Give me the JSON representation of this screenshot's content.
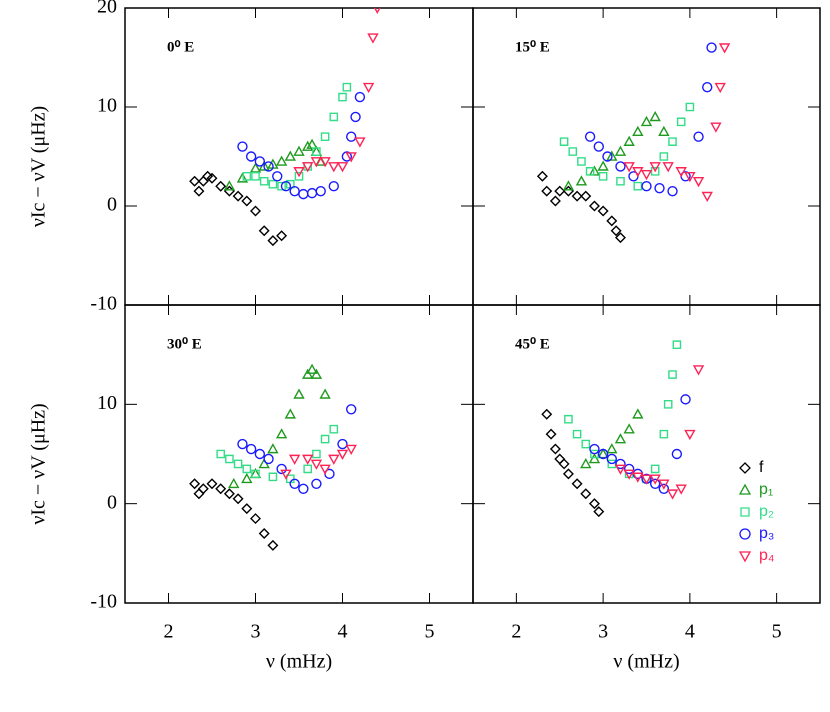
{
  "chart_data": [
    {
      "type": "scatter",
      "title": "0⁰ E",
      "ylabel": "νIc − νV (μHz)",
      "xlim": [
        1.5,
        5.5
      ],
      "ylim": [
        -10,
        20
      ],
      "yticks": [
        -10,
        0,
        10,
        20
      ],
      "series": [
        {
          "marker": "diamond",
          "color": "#000000",
          "x": [
            2.3,
            2.35,
            2.4,
            2.45,
            2.5,
            2.6,
            2.7,
            2.8,
            2.9,
            3.0,
            3.1,
            3.2,
            3.3
          ],
          "y": [
            2.5,
            1.5,
            2.5,
            3,
            2.8,
            2,
            1.5,
            1,
            0.5,
            -0.5,
            -2.5,
            -3.5,
            -3
          ]
        },
        {
          "marker": "triangle",
          "color": "#1f9a1f",
          "x": [
            2.7,
            2.85,
            3.0,
            3.1,
            3.2,
            3.3,
            3.4,
            3.5,
            3.6,
            3.65,
            3.7,
            3.75
          ],
          "y": [
            2,
            2.8,
            3.8,
            4,
            4.2,
            4.5,
            5,
            5.5,
            6,
            6.2,
            5.5,
            4.5
          ]
        },
        {
          "marker": "square",
          "color": "#33dd88",
          "x": [
            2.9,
            3.0,
            3.1,
            3.2,
            3.3,
            3.4,
            3.5,
            3.6,
            3.7,
            3.8,
            3.9,
            4.0,
            4.05
          ],
          "y": [
            3,
            3,
            2.5,
            2.2,
            2,
            2.2,
            3,
            4,
            5.5,
            7,
            9,
            11,
            12
          ]
        },
        {
          "marker": "circle",
          "color": "#1a1aff",
          "x": [
            2.85,
            2.95,
            3.05,
            3.15,
            3.25,
            3.35,
            3.45,
            3.55,
            3.65,
            3.75,
            3.9,
            4.05,
            4.1,
            4.15,
            4.2
          ],
          "y": [
            6,
            5,
            4.5,
            4,
            3,
            2,
            1.5,
            1.2,
            1.3,
            1.5,
            2,
            5,
            7,
            9,
            11
          ]
        },
        {
          "marker": "invtriangle",
          "color": "#ff2255",
          "x": [
            3.5,
            3.6,
            3.7,
            3.8,
            3.9,
            4.0,
            4.1,
            4.2,
            4.3,
            4.35,
            4.4
          ],
          "y": [
            3.5,
            4,
            4.5,
            4.5,
            4,
            4,
            5,
            6.5,
            12,
            17,
            20
          ]
        }
      ]
    },
    {
      "type": "scatter",
      "title": "15⁰ E",
      "xlim": [
        1.5,
        5.5
      ],
      "ylim": [
        -10,
        20
      ],
      "series": [
        {
          "marker": "diamond",
          "color": "#000000",
          "x": [
            2.3,
            2.35,
            2.45,
            2.5,
            2.6,
            2.7,
            2.8,
            2.9,
            3.0,
            3.1,
            3.15,
            3.2
          ],
          "y": [
            3,
            1.5,
            0.5,
            1.5,
            1.5,
            1,
            1,
            0,
            -0.5,
            -1.5,
            -2.5,
            -3.2
          ]
        },
        {
          "marker": "triangle",
          "color": "#1f9a1f",
          "x": [
            2.6,
            2.75,
            2.9,
            3.0,
            3.1,
            3.2,
            3.3,
            3.4,
            3.5,
            3.6,
            3.7
          ],
          "y": [
            2,
            2.5,
            3.5,
            4,
            5,
            5.5,
            6.5,
            7.5,
            8.5,
            9,
            7.5
          ]
        },
        {
          "marker": "square",
          "color": "#33dd88",
          "x": [
            2.55,
            2.65,
            2.75,
            2.85,
            3.0,
            3.2,
            3.4,
            3.6,
            3.7,
            3.8,
            3.9,
            4.0
          ],
          "y": [
            6.5,
            5.5,
            4.5,
            3.5,
            3,
            2.5,
            2,
            3.5,
            5,
            6.5,
            8.5,
            10
          ]
        },
        {
          "marker": "circle",
          "color": "#1a1aff",
          "x": [
            2.85,
            2.95,
            3.05,
            3.2,
            3.35,
            3.5,
            3.65,
            3.8,
            3.95,
            4.1,
            4.2,
            4.25
          ],
          "y": [
            7,
            6,
            5,
            4,
            3,
            2,
            1.8,
            1.5,
            3,
            7,
            12,
            16
          ]
        },
        {
          "marker": "invtriangle",
          "color": "#ff2255",
          "x": [
            3.3,
            3.4,
            3.5,
            3.6,
            3.75,
            3.9,
            4.0,
            4.1,
            4.2,
            4.3,
            4.35,
            4.4
          ],
          "y": [
            4,
            3.5,
            3.2,
            4,
            4,
            3.5,
            3,
            2.5,
            1,
            8,
            12,
            16
          ]
        }
      ]
    },
    {
      "type": "scatter",
      "title": "30⁰ E",
      "ylabel": "νIc − νV (μHz)",
      "xlabel": "ν (mHz)",
      "xlim": [
        1.5,
        5.5
      ],
      "ylim": [
        -10,
        20
      ],
      "xticks": [
        2,
        3,
        4,
        5
      ],
      "yticks": [
        -10,
        0,
        10
      ],
      "series": [
        {
          "marker": "diamond",
          "color": "#000000",
          "x": [
            2.3,
            2.35,
            2.4,
            2.5,
            2.6,
            2.7,
            2.8,
            2.9,
            3.0,
            3.1,
            3.2
          ],
          "y": [
            2,
            1,
            1.5,
            2,
            1.5,
            1,
            0.5,
            -0.5,
            -1.5,
            -3,
            -4.2
          ]
        },
        {
          "marker": "triangle",
          "color": "#1f9a1f",
          "x": [
            2.75,
            2.9,
            3.0,
            3.1,
            3.2,
            3.3,
            3.4,
            3.5,
            3.6,
            3.65,
            3.7,
            3.8
          ],
          "y": [
            2,
            2.5,
            3,
            4,
            5.5,
            7,
            9,
            11,
            13,
            13.5,
            13,
            11
          ]
        },
        {
          "marker": "square",
          "color": "#33dd88",
          "x": [
            2.6,
            2.7,
            2.8,
            2.9,
            3.0,
            3.2,
            3.4,
            3.6,
            3.7,
            3.8,
            3.9
          ],
          "y": [
            5,
            4.5,
            4,
            3.5,
            3,
            2.7,
            2.5,
            3.5,
            5,
            6.5,
            7.5
          ]
        },
        {
          "marker": "circle",
          "color": "#1a1aff",
          "x": [
            2.85,
            2.95,
            3.05,
            3.15,
            3.3,
            3.45,
            3.55,
            3.7,
            3.85,
            4.0,
            4.1
          ],
          "y": [
            6,
            5.5,
            5,
            4.5,
            3.5,
            2,
            1.5,
            2,
            3,
            6,
            9.5
          ]
        },
        {
          "marker": "invtriangle",
          "color": "#ff2255",
          "x": [
            3.35,
            3.45,
            3.6,
            3.7,
            3.8,
            3.9,
            4.0,
            4.1
          ],
          "y": [
            3,
            4.5,
            4.5,
            4,
            3.5,
            4.5,
            5,
            5.5
          ]
        }
      ]
    },
    {
      "type": "scatter",
      "title": "45⁰ E",
      "xlabel": "ν (mHz)",
      "xlim": [
        1.5,
        5.5
      ],
      "ylim": [
        -10,
        20
      ],
      "xticks": [
        2,
        3,
        4,
        5
      ],
      "legend": "right",
      "series": [
        {
          "name": "f",
          "marker": "diamond",
          "color": "#000000",
          "x": [
            2.35,
            2.4,
            2.45,
            2.5,
            2.55,
            2.6,
            2.7,
            2.8,
            2.9,
            2.95
          ],
          "y": [
            9,
            7,
            5.5,
            4.5,
            4,
            3,
            2,
            1,
            0,
            -0.8
          ]
        },
        {
          "name": "p₁",
          "marker": "triangle",
          "color": "#1f9a1f",
          "x": [
            2.8,
            2.9,
            3.0,
            3.1,
            3.2,
            3.3,
            3.4
          ],
          "y": [
            4,
            4.5,
            5,
            5.5,
            6.5,
            7.5,
            9
          ]
        },
        {
          "name": "p₂",
          "marker": "square",
          "color": "#33dd88",
          "x": [
            2.6,
            2.7,
            2.8,
            2.9,
            3.1,
            3.3,
            3.5,
            3.6,
            3.7,
            3.75,
            3.8,
            3.85
          ],
          "y": [
            8.5,
            7,
            6,
            5,
            4,
            3,
            2.5,
            3.5,
            7,
            10,
            13,
            16
          ]
        },
        {
          "name": "p₃",
          "marker": "circle",
          "color": "#1a1aff",
          "x": [
            2.9,
            3.0,
            3.1,
            3.2,
            3.3,
            3.4,
            3.5,
            3.6,
            3.7,
            3.85,
            3.95
          ],
          "y": [
            5.5,
            5,
            4.5,
            4,
            3.5,
            3,
            2.5,
            2,
            1.5,
            5,
            10.5
          ]
        },
        {
          "name": "p₄",
          "marker": "invtriangle",
          "color": "#ff2255",
          "x": [
            3.2,
            3.3,
            3.4,
            3.5,
            3.6,
            3.7,
            3.8,
            3.9,
            4.0,
            4.1
          ],
          "y": [
            3.5,
            3,
            2.7,
            2.5,
            2.5,
            2,
            1,
            1.5,
            7,
            13.5
          ]
        }
      ]
    }
  ]
}
